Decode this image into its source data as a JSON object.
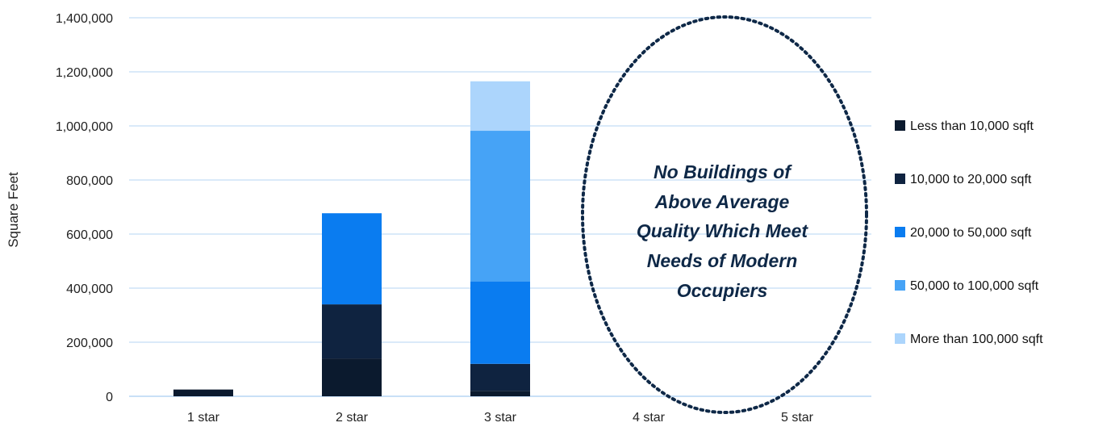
{
  "chart_data": {
    "type": "bar",
    "stacked": true,
    "categories": [
      "1 star",
      "2 star",
      "3 star",
      "4 star",
      "5 star"
    ],
    "ylabel": "Square Feet",
    "ylim": [
      0,
      1400000
    ],
    "yticks": [
      0,
      200000,
      400000,
      600000,
      800000,
      1000000,
      1200000,
      1400000
    ],
    "ytick_labels": [
      "0",
      "200,000",
      "400,000",
      "600,000",
      "800,000",
      "1,000,000",
      "1,200,000",
      "1,400,000"
    ],
    "grid": true,
    "legend_position": "right",
    "series": [
      {
        "name": "Less than 10,000 sqft",
        "color": "#0b1a2e",
        "values": [
          25000,
          140000,
          20000,
          0,
          0
        ]
      },
      {
        "name": "10,000 to 20,000 sqft",
        "color": "#0f2340",
        "values": [
          0,
          200000,
          100000,
          0,
          0
        ]
      },
      {
        "name": "20,000 to 50,000 sqft",
        "color": "#0a7cf0",
        "values": [
          0,
          337000,
          305000,
          0,
          0
        ]
      },
      {
        "name": "50,000 to 100,000 sqft",
        "color": "#46a3f6",
        "values": [
          0,
          0,
          557000,
          0,
          0
        ]
      },
      {
        "name": "More than 100,000 sqft",
        "color": "#acd5fc",
        "values": [
          0,
          0,
          183000,
          0,
          0
        ]
      }
    ],
    "annotation": {
      "lines": [
        "No Buildings of",
        "Above Average",
        "Quality Which Meet",
        "Needs of Modern",
        "Occupiers"
      ],
      "color": "#0e2847"
    }
  }
}
